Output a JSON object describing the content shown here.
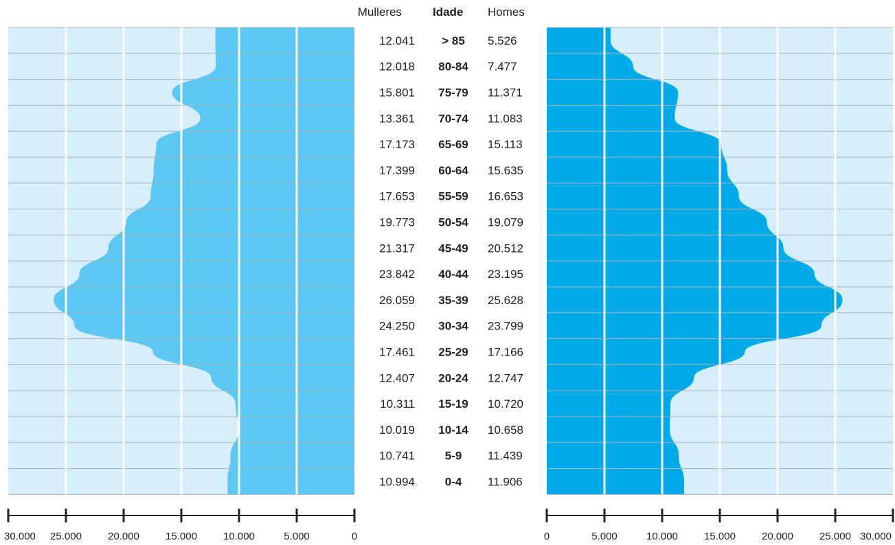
{
  "chart_data": {
    "type": "bar",
    "orientation": "horizontal",
    "layout": "population-pyramid",
    "headers": {
      "left": "Mulleres",
      "center": "Idade",
      "right": "Homes"
    },
    "categories": [
      "> 85",
      "80-84",
      "75-79",
      "70-74",
      "65-69",
      "60-64",
      "55-59",
      "50-54",
      "45-49",
      "40-44",
      "35-39",
      "30-34",
      "25-29",
      "20-24",
      "15-19",
      "10-14",
      "5-9",
      "0-4"
    ],
    "series": [
      {
        "name": "Mulleres",
        "side": "left",
        "values": [
          12041,
          12018,
          15801,
          13361,
          17173,
          17399,
          17653,
          19773,
          21317,
          23842,
          26059,
          24250,
          17461,
          12407,
          10311,
          10019,
          10741,
          10994
        ],
        "labels": [
          "12.041",
          "12.018",
          "15.801",
          "13.361",
          "17.173",
          "17.399",
          "17.653",
          "19.773",
          "21.317",
          "23.842",
          "26.059",
          "24.250",
          "17.461",
          "12.407",
          "10.311",
          "10.019",
          "10.741",
          "10.994"
        ]
      },
      {
        "name": "Homes",
        "side": "right",
        "values": [
          5526,
          7477,
          11371,
          11083,
          15113,
          15635,
          16653,
          19079,
          20512,
          23195,
          25628,
          23799,
          17166,
          12747,
          10720,
          10658,
          11439,
          11906
        ],
        "labels": [
          "5.526",
          "7.477",
          "11.371",
          "11.083",
          "15.113",
          "15.635",
          "16.653",
          "19.079",
          "20.512",
          "23.195",
          "25.628",
          "23.799",
          "17.166",
          "12.747",
          "10.720",
          "10.658",
          "11.439",
          "11.906"
        ]
      }
    ],
    "x_range": [
      0,
      30000
    ],
    "x_ticks": [
      0,
      5000,
      10000,
      15000,
      20000,
      25000,
      30000
    ],
    "x_tick_labels": [
      "0",
      "5.000",
      "10.000",
      "15.000",
      "20.000",
      "25.000",
      "30.000"
    ],
    "grid": true,
    "colors": {
      "left_fill": "#5bc8f3",
      "right_fill": "#00a9e8",
      "background": "#d6eefb",
      "grid_line": "#ffffff",
      "row_line": "#a9b3ba"
    }
  }
}
